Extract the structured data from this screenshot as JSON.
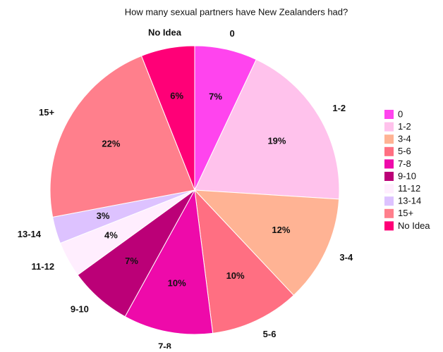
{
  "chart_data": {
    "type": "pie",
    "title": "How many sexual partners have New Zealanders had?",
    "categories": [
      "0",
      "1-2",
      "3-4",
      "5-6",
      "7-8",
      "9-10",
      "11-12",
      "13-14",
      "15+",
      "No Idea"
    ],
    "values": [
      7,
      19,
      12,
      10,
      10,
      7,
      4,
      3,
      22,
      6
    ],
    "value_labels": [
      "7%",
      "19%",
      "12%",
      "10%",
      "10%",
      "7%",
      "4%",
      "3%",
      "22%",
      "6%"
    ],
    "colors": [
      "#ff44ee",
      "#ffc2ec",
      "#ffb394",
      "#ff6f82",
      "#ee0aaa",
      "#bb0077",
      "#ffeefe",
      "#ddc2ff",
      "#ff7f8c",
      "#ff0077"
    ],
    "legend": "right"
  }
}
